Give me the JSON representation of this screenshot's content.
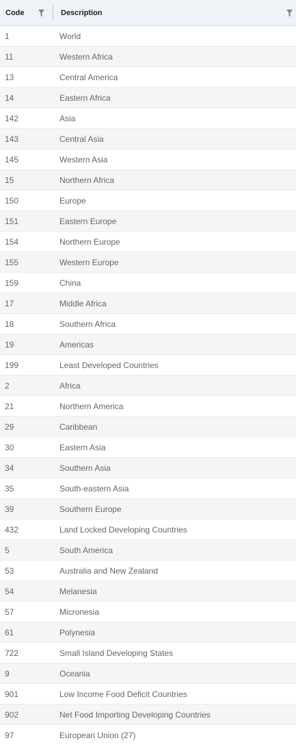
{
  "header": {
    "code_label": "Code",
    "description_label": "Description",
    "filter_icon_color": "#7a8088"
  },
  "rows": [
    {
      "code": "1",
      "description": "World"
    },
    {
      "code": "11",
      "description": "Western Africa"
    },
    {
      "code": "13",
      "description": "Central America"
    },
    {
      "code": "14",
      "description": "Eastern Africa"
    },
    {
      "code": "142",
      "description": "Asia"
    },
    {
      "code": "143",
      "description": "Central Asia"
    },
    {
      "code": "145",
      "description": "Western Asia"
    },
    {
      "code": "15",
      "description": "Northern Africa"
    },
    {
      "code": "150",
      "description": "Europe"
    },
    {
      "code": "151",
      "description": "Eastern Europe"
    },
    {
      "code": "154",
      "description": "Northern Europe"
    },
    {
      "code": "155",
      "description": "Western Europe"
    },
    {
      "code": "159",
      "description": "China"
    },
    {
      "code": "17",
      "description": "Middle Africa"
    },
    {
      "code": "18",
      "description": "Southern Africa"
    },
    {
      "code": "19",
      "description": "Americas"
    },
    {
      "code": "199",
      "description": "Least Developed Countries"
    },
    {
      "code": "2",
      "description": "Africa"
    },
    {
      "code": "21",
      "description": "Northern America"
    },
    {
      "code": "29",
      "description": "Caribbean"
    },
    {
      "code": "30",
      "description": "Eastern Asia"
    },
    {
      "code": "34",
      "description": "Southern Asia"
    },
    {
      "code": "35",
      "description": "South-eastern Asia"
    },
    {
      "code": "39",
      "description": "Southern Europe"
    },
    {
      "code": "432",
      "description": "Land Locked Developing Countries"
    },
    {
      "code": "5",
      "description": "South America"
    },
    {
      "code": "53",
      "description": "Australia and New Zealand"
    },
    {
      "code": "54",
      "description": "Melanesia"
    },
    {
      "code": "57",
      "description": "Micronesia"
    },
    {
      "code": "61",
      "description": "Polynesia"
    },
    {
      "code": "722",
      "description": "Small Island Developing States"
    },
    {
      "code": "9",
      "description": "Oceania"
    },
    {
      "code": "901",
      "description": "Low Income Food Deficit Countries"
    },
    {
      "code": "902",
      "description": "Net Food Importing Developing Countries"
    },
    {
      "code": "97",
      "description": "European Union (27)"
    }
  ]
}
